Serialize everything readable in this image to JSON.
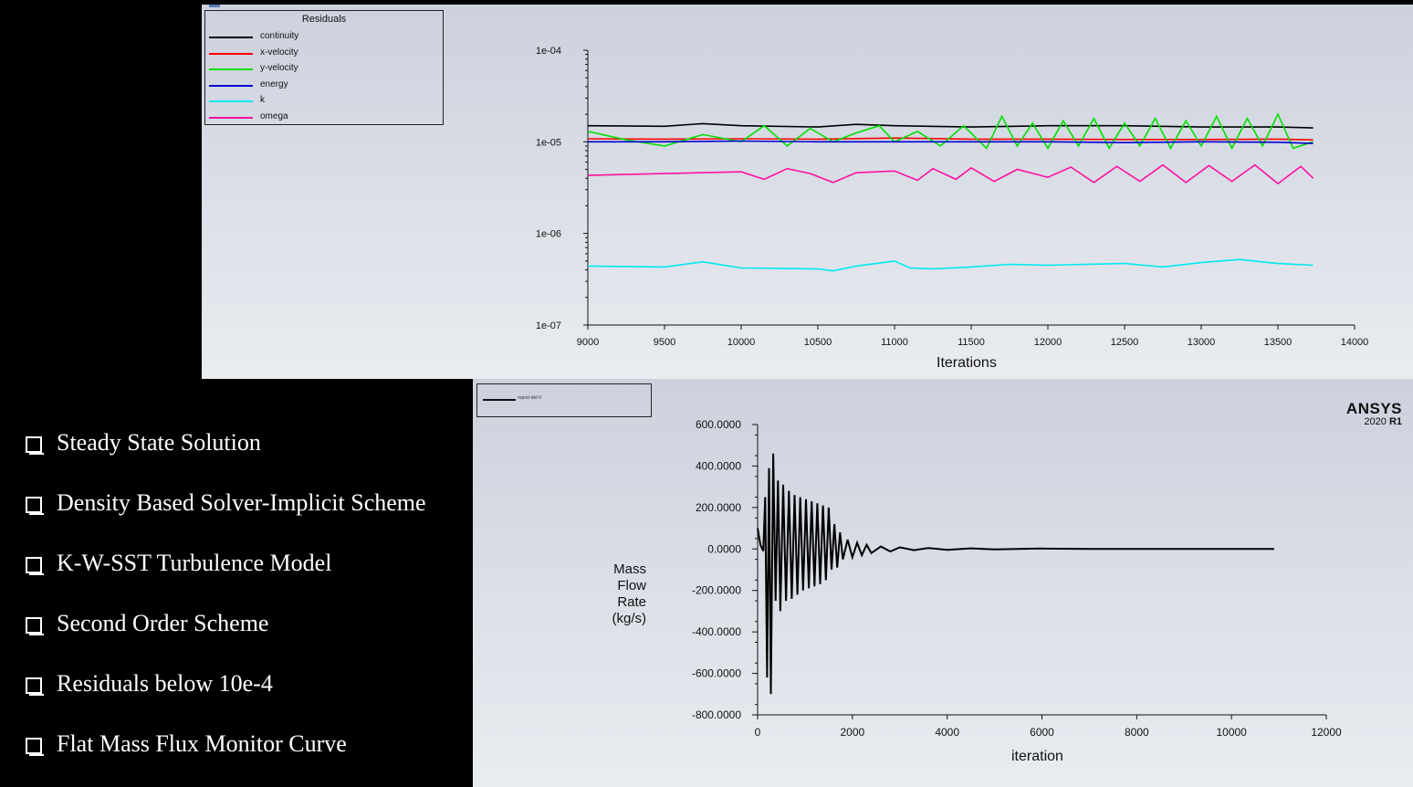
{
  "residuals_chart": {
    "legend_title": "Residuals",
    "x_axis_label": "Iterations"
  },
  "mass_chart": {
    "legend_label": "report-def-0",
    "y_axis_label_lines": [
      "Mass",
      "Flow",
      "Rate",
      "(kg/s)"
    ],
    "x_axis_label": "iteration",
    "brand": {
      "name": "ANSYS",
      "version_prefix": "2020",
      "version_suffix": "R1"
    }
  },
  "bullets": [
    "Steady State Solution",
    "Density Based Solver-Implicit Scheme",
    "K-W-SST Turbulence Model",
    "Second Order Scheme",
    "Residuals below 10e-4",
    "Flat Mass Flux Monitor Curve"
  ],
  "chart_data": [
    {
      "type": "line",
      "title": "Residuals",
      "xlabel": "Iterations",
      "ylabel": "",
      "yscale": "log",
      "xlim": [
        9000,
        14000
      ],
      "ylim": [
        1e-07,
        0.0001
      ],
      "x_ticks": [
        "9000",
        "9500",
        "10000",
        "10500",
        "11000",
        "11500",
        "12000",
        "12500",
        "13000",
        "13500",
        "14000"
      ],
      "y_ticks": [
        "1e-07",
        "1e-06",
        "1e-05",
        "1e-04"
      ],
      "legend_position": "top-left",
      "grid": false,
      "series": [
        {
          "name": "continuity",
          "color": "#000000",
          "x": [
            9000,
            9500,
            9750,
            10000,
            10500,
            10750,
            11000,
            11500,
            12000,
            12500,
            13000,
            13500,
            13730
          ],
          "y": [
            1.5e-05,
            1.48e-05,
            1.58e-05,
            1.5e-05,
            1.45e-05,
            1.55e-05,
            1.5e-05,
            1.45e-05,
            1.5e-05,
            1.5e-05,
            1.45e-05,
            1.45e-05,
            1.42e-05
          ]
        },
        {
          "name": "x-velocity",
          "color": "#ff0000",
          "x": [
            9000,
            9500,
            10000,
            10500,
            11000,
            11500,
            12000,
            12500,
            13000,
            13500,
            13730
          ],
          "y": [
            1.08e-05,
            1.07e-05,
            1.08e-05,
            1.07e-05,
            1.1e-05,
            1.07e-05,
            1.07e-05,
            1.06e-05,
            1.06e-05,
            1.07e-05,
            1.05e-05
          ]
        },
        {
          "name": "y-velocity",
          "color": "#00e000",
          "x": [
            9000,
            9250,
            9500,
            9750,
            10000,
            10150,
            10300,
            10450,
            10600,
            10750,
            10900,
            11000,
            11150,
            11300,
            11450,
            11600,
            11700,
            11800,
            11900,
            12000,
            12100,
            12200,
            12300,
            12400,
            12500,
            12600,
            12700,
            12800,
            12900,
            13000,
            13100,
            13200,
            13300,
            13400,
            13500,
            13600,
            13730
          ],
          "y": [
            1.3e-05,
            1.05e-05,
            9e-06,
            1.2e-05,
            1e-05,
            1.5e-05,
            9e-06,
            1.4e-05,
            1e-05,
            1.25e-05,
            1.5e-05,
            1e-05,
            1.3e-05,
            9e-06,
            1.5e-05,
            8.5e-06,
            1.9e-05,
            9e-06,
            1.6e-05,
            8.5e-06,
            1.7e-05,
            9e-06,
            1.8e-05,
            8.5e-06,
            1.6e-05,
            9e-06,
            1.8e-05,
            8.5e-06,
            1.7e-05,
            9e-06,
            1.9e-05,
            8.5e-06,
            1.8e-05,
            9e-06,
            2e-05,
            8.5e-06,
            1e-05
          ]
        },
        {
          "name": "energy",
          "color": "#0000d0",
          "x": [
            9000,
            9500,
            10000,
            10500,
            11000,
            11500,
            12000,
            12500,
            13000,
            13500,
            13730
          ],
          "y": [
            1e-05,
            1e-05,
            1.02e-05,
            1e-05,
            1e-05,
            1e-05,
            1e-05,
            9.8e-06,
            1e-05,
            9.9e-06,
            9.6e-06
          ]
        },
        {
          "name": "k",
          "color": "#00e8f0",
          "x": [
            9000,
            9500,
            9750,
            10000,
            10500,
            10600,
            10750,
            11000,
            11100,
            11250,
            11500,
            11750,
            12000,
            12250,
            12500,
            12750,
            13000,
            13250,
            13500,
            13730
          ],
          "y": [
            4.4e-07,
            4.3e-07,
            4.9e-07,
            4.2e-07,
            4.1e-07,
            3.9e-07,
            4.4e-07,
            5e-07,
            4.2e-07,
            4.1e-07,
            4.3e-07,
            4.6e-07,
            4.5e-07,
            4.6e-07,
            4.7e-07,
            4.3e-07,
            4.8e-07,
            5.2e-07,
            4.7e-07,
            4.5e-07
          ]
        },
        {
          "name": "omega",
          "color": "#ff10a0",
          "x": [
            9000,
            9500,
            10000,
            10150,
            10300,
            10450,
            10600,
            10750,
            11000,
            11150,
            11250,
            11400,
            11500,
            11650,
            11800,
            12000,
            12150,
            12300,
            12450,
            12600,
            12750,
            12900,
            13050,
            13200,
            13350,
            13500,
            13650,
            13730
          ],
          "y": [
            4.3e-06,
            4.5e-06,
            4.7e-06,
            3.9e-06,
            5.1e-06,
            4.5e-06,
            3.6e-06,
            4.6e-06,
            4.8e-06,
            3.8e-06,
            5.1e-06,
            3.9e-06,
            5.2e-06,
            3.7e-06,
            5e-06,
            4.1e-06,
            5.3e-06,
            3.6e-06,
            5.4e-06,
            3.7e-06,
            5.6e-06,
            3.6e-06,
            5.5e-06,
            3.7e-06,
            5.6e-06,
            3.5e-06,
            5.4e-06,
            4e-06
          ]
        }
      ]
    },
    {
      "type": "line",
      "title": "",
      "xlabel": "iteration",
      "ylabel": "Mass Flow Rate (kg/s)",
      "xlim": [
        0,
        12000
      ],
      "ylim": [
        -800,
        600
      ],
      "x_ticks": [
        "0",
        "2000",
        "4000",
        "6000",
        "8000",
        "10000",
        "12000"
      ],
      "y_ticks": [
        "600.0000",
        "400.0000",
        "200.0000",
        "0.0000",
        "-200.0000",
        "-400.0000",
        "-600.0000",
        "-800.0000"
      ],
      "legend_position": "top-left",
      "grid": false,
      "series": [
        {
          "name": "report-def-0",
          "color": "#000000",
          "x": [
            0,
            60,
            120,
            160,
            200,
            240,
            280,
            330,
            380,
            430,
            480,
            540,
            600,
            660,
            720,
            780,
            840,
            900,
            960,
            1020,
            1080,
            1140,
            1200,
            1260,
            1320,
            1380,
            1440,
            1500,
            1560,
            1620,
            1680,
            1740,
            1800,
            1900,
            2000,
            2100,
            2200,
            2300,
            2400,
            2600,
            2800,
            3000,
            3300,
            3600,
            4000,
            4500,
            5000,
            6000,
            7000,
            8000,
            9000,
            10000,
            10900
          ],
          "y": [
            100,
            20,
            -10,
            250,
            -620,
            390,
            -700,
            460,
            -250,
            330,
            -300,
            310,
            -250,
            280,
            -240,
            260,
            -220,
            250,
            -200,
            240,
            -190,
            230,
            -180,
            220,
            -170,
            210,
            -150,
            200,
            -100,
            120,
            -90,
            80,
            -50,
            45,
            -40,
            30,
            -30,
            20,
            -20,
            12,
            -12,
            8,
            -6,
            5,
            -4,
            3,
            -2,
            2,
            0,
            0,
            0,
            0,
            0
          ]
        }
      ]
    }
  ]
}
